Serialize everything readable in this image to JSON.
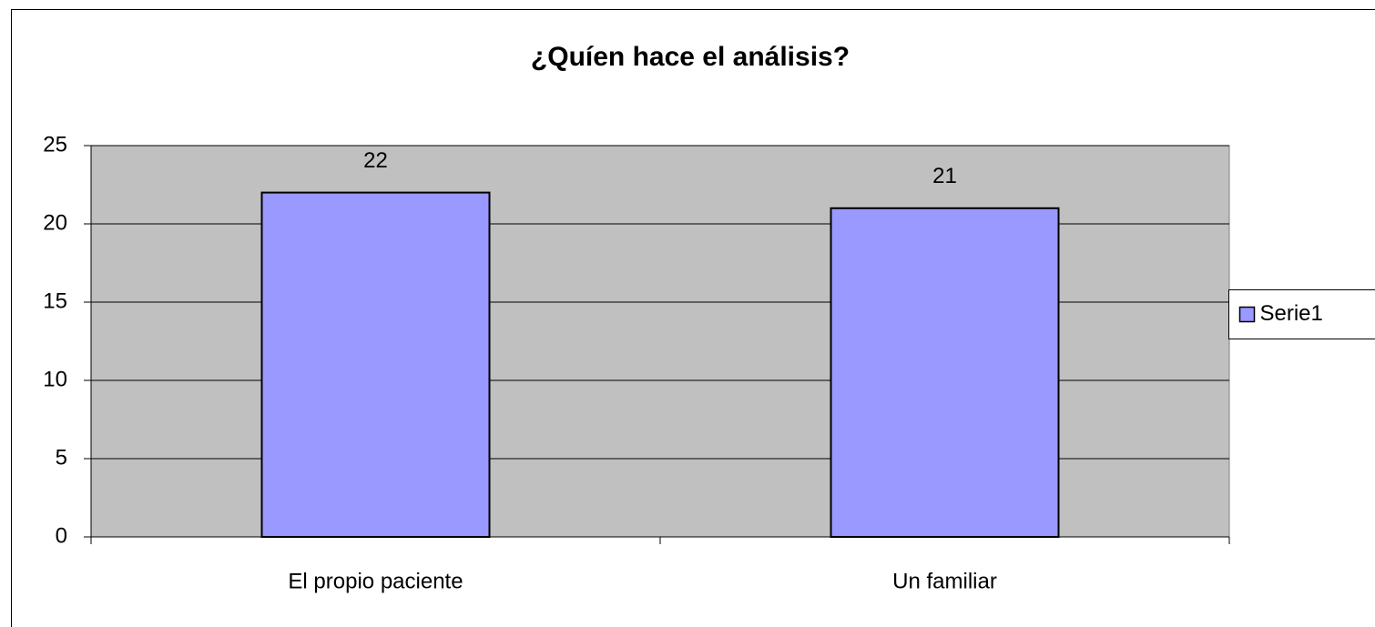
{
  "chart_data": {
    "type": "bar",
    "title": "¿Quíen hace el análisis?",
    "categories": [
      "El propio paciente",
      "Un familiar"
    ],
    "series": [
      {
        "name": "Serie1",
        "color": "#9999ff",
        "values": [
          22,
          21
        ]
      }
    ],
    "ylim": [
      0,
      25
    ],
    "yticks": [
      0,
      5,
      10,
      15,
      20,
      25
    ],
    "grid": true,
    "legend": "right",
    "data_labels": true
  }
}
